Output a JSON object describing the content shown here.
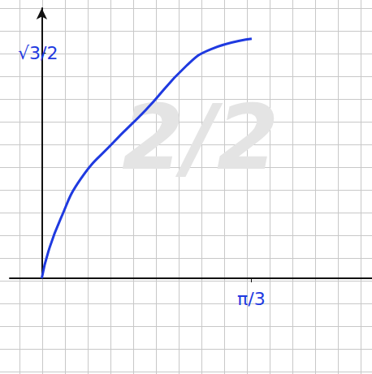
{
  "chart_data": {
    "type": "line",
    "x": [
      0,
      0.033,
      0.093,
      0.195,
      0.358,
      0.52,
      0.724,
      0.846,
      1.049
    ],
    "values": [
      0,
      0.103,
      0.227,
      0.383,
      0.523,
      0.648,
      0.819,
      0.882,
      0.922
    ],
    "color": "#1f3ae0",
    "xlim": [
      -0.16,
      1.65
    ],
    "ylim": [
      0,
      1.04
    ],
    "xticks": [
      {
        "value": 1.047,
        "label": "π/3"
      }
    ],
    "yticks": [
      {
        "value": 0.866,
        "label": "√3/2"
      }
    ],
    "grid": true,
    "annotations": [
      {
        "text": "2/2"
      }
    ]
  }
}
